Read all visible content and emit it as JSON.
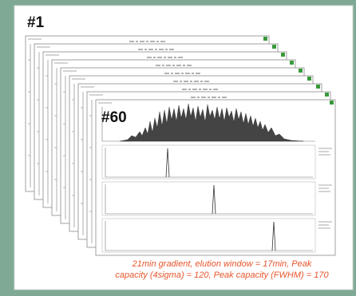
{
  "labels": {
    "first": "#1",
    "last": "#60"
  },
  "caption": {
    "lines": [
      "21min gradient, elution window = 17min, Peak",
      "capacity (4sigma) = 120, Peak capacity (FWHM) = 170"
    ]
  }
}
